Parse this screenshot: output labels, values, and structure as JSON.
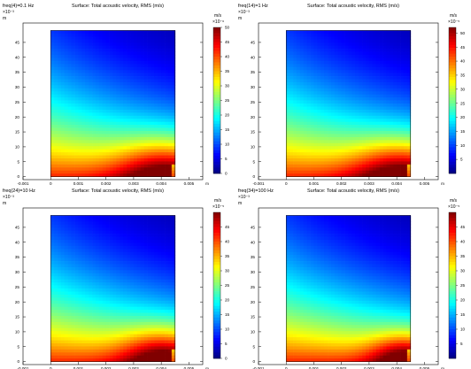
{
  "chart_data": [
    {
      "type": "heatmap",
      "panel_label": "freq(4)=0.1 Hz",
      "title": "Surface: Total acoustic velocity, RMS (m/s)",
      "x_unit": "m",
      "y_unit": "m",
      "y_exponent": "×10⁻³",
      "x_ticks": [
        "-0.001",
        "0",
        "0.001",
        "0.002",
        "0.003",
        "0.004",
        "0.005"
      ],
      "y_ticks": [
        "0",
        "5",
        "10",
        "15",
        "20",
        "25",
        "30",
        "35",
        "40",
        "45"
      ],
      "xlim": [
        -0.001,
        0.0055
      ],
      "ylim": [
        -0.001,
        0.0515
      ],
      "domain_x": [
        0,
        0.0045
      ],
      "domain_y": [
        0,
        0.049
      ],
      "colorbar": {
        "unit": "m/s",
        "exponent": "×10⁻⁶",
        "ticks": [
          "0",
          "5",
          "10",
          "15",
          "20",
          "25",
          "30",
          "35",
          "40",
          "45",
          "50"
        ],
        "range": [
          0,
          50
        ]
      },
      "hot_spot": [
        0.0042,
        0.0008
      ],
      "spread": 1.0
    },
    {
      "type": "heatmap",
      "panel_label": "freq(14)=1 Hz",
      "title": "Surface: Total acoustic velocity, RMS (m/s)",
      "x_unit": "m",
      "y_unit": "m",
      "y_exponent": "×10⁻³",
      "x_ticks": [
        "-0.001",
        "0",
        "0.001",
        "0.002",
        "0.003",
        "0.004",
        "0.005"
      ],
      "y_ticks": [
        "0",
        "5",
        "10",
        "15",
        "20",
        "25",
        "30",
        "35",
        "40",
        "45"
      ],
      "xlim": [
        -0.001,
        0.0055
      ],
      "ylim": [
        -0.001,
        0.0515
      ],
      "domain_x": [
        0,
        0.0045
      ],
      "domain_y": [
        0,
        0.049
      ],
      "colorbar": {
        "unit": "m/s",
        "exponent": "×10⁻⁵",
        "ticks": [
          "5",
          "10",
          "15",
          "20",
          "25",
          "30",
          "35",
          "40",
          "45",
          "50"
        ],
        "range": [
          0,
          52
        ]
      },
      "hot_spot": [
        0.0042,
        0.0008
      ],
      "spread": 1.0
    },
    {
      "type": "heatmap",
      "panel_label": "freq(24)=10 Hz",
      "title": "Surface: Total acoustic velocity, RMS (m/s)",
      "x_unit": "m",
      "y_unit": "m",
      "y_exponent": "×10⁻³",
      "x_ticks": [
        "-0.001",
        "0",
        "0.001",
        "0.002",
        "0.003",
        "0.004",
        "0.005"
      ],
      "y_ticks": [
        "0",
        "5",
        "10",
        "15",
        "20",
        "25",
        "30",
        "35",
        "40",
        "45"
      ],
      "xlim": [
        -0.001,
        0.0055
      ],
      "ylim": [
        -0.001,
        0.0515
      ],
      "domain_x": [
        0,
        0.0045
      ],
      "domain_y": [
        0,
        0.049
      ],
      "colorbar": {
        "unit": "m/s",
        "exponent": "×10⁻⁵",
        "ticks": [
          "0",
          "5",
          "10",
          "15",
          "20",
          "25",
          "30",
          "35",
          "40",
          "45"
        ],
        "range": [
          0,
          50
        ]
      },
      "hot_spot": [
        0.0041,
        0.0012
      ],
      "spread": 0.85
    },
    {
      "type": "heatmap",
      "panel_label": "freq(34)=100 Hz",
      "title": "Surface: Total acoustic velocity, RMS (m/s)",
      "x_unit": "m",
      "y_unit": "m",
      "y_exponent": "×10⁻³",
      "x_ticks": [
        "-0.001",
        "0",
        "0.001",
        "0.002",
        "0.003",
        "0.004",
        "0.005"
      ],
      "y_ticks": [
        "0",
        "5",
        "10",
        "15",
        "20",
        "25",
        "30",
        "35",
        "40",
        "45"
      ],
      "xlim": [
        -0.001,
        0.0055
      ],
      "ylim": [
        -0.001,
        0.0515
      ],
      "domain_x": [
        0,
        0.0045
      ],
      "domain_y": [
        0,
        0.049
      ],
      "colorbar": {
        "unit": "m/s",
        "exponent": "×10⁻⁵",
        "ticks": [
          "5",
          "10",
          "15",
          "20",
          "25",
          "30",
          "35",
          "40",
          "45"
        ],
        "range": [
          0,
          50
        ]
      },
      "hot_spot": [
        0.0043,
        0.0012
      ],
      "spread": 0.7
    }
  ]
}
